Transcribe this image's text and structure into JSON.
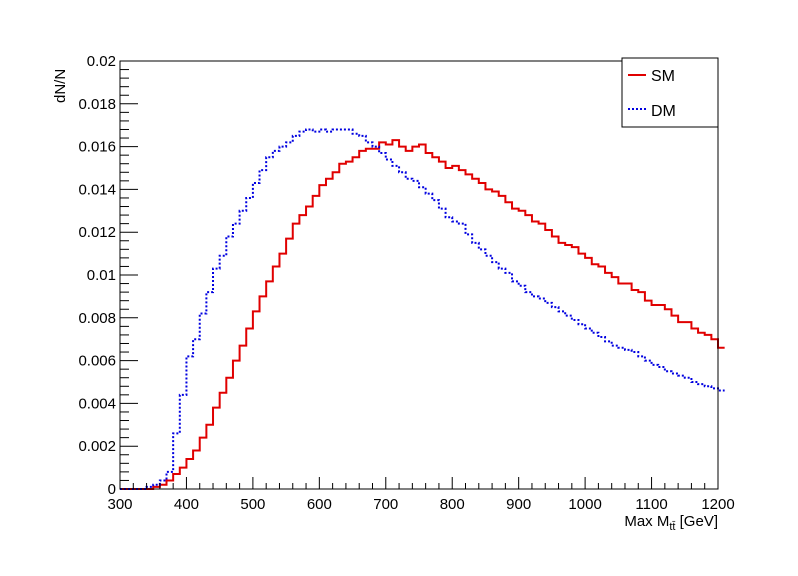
{
  "chart_data": {
    "type": "line",
    "subtype": "step-histogram",
    "title": "",
    "xlabel": "Max M_tt̄ [GeV]",
    "xlabel_parts": {
      "prefix": "Max M",
      "subscript": "tt̄",
      "suffix": " [GeV]"
    },
    "ylabel": "dN/N",
    "xlim": [
      300,
      1200
    ],
    "ylim": [
      0,
      0.02
    ],
    "x_ticks": [
      "300",
      "400",
      "500",
      "600",
      "700",
      "800",
      "900",
      "1000",
      "1100",
      "1200"
    ],
    "y_ticks": [
      "0",
      "0.002",
      "0.004",
      "0.006",
      "0.008",
      "0.01",
      "0.012",
      "0.014",
      "0.016",
      "0.018",
      "0.02"
    ],
    "bin_start": 300,
    "bin_width": 10,
    "legend": {
      "position": "top-right"
    },
    "series": [
      {
        "name": "SM",
        "color": "#e00000",
        "style": "solid",
        "values": [
          0,
          0,
          0,
          0,
          0,
          0.0001,
          0.0002,
          0.0004,
          0.0007,
          0.001,
          0.0014,
          0.0018,
          0.0024,
          0.003,
          0.0038,
          0.0045,
          0.0052,
          0.006,
          0.0067,
          0.0075,
          0.0083,
          0.009,
          0.0097,
          0.0104,
          0.011,
          0.0117,
          0.0124,
          0.0128,
          0.0132,
          0.0137,
          0.0142,
          0.0145,
          0.0148,
          0.0152,
          0.0153,
          0.0155,
          0.0158,
          0.0159,
          0.0159,
          0.0162,
          0.0161,
          0.0163,
          0.016,
          0.0158,
          0.016,
          0.0161,
          0.0157,
          0.0155,
          0.0153,
          0.015,
          0.0151,
          0.0149,
          0.0147,
          0.0145,
          0.0143,
          0.014,
          0.0139,
          0.0137,
          0.0134,
          0.0131,
          0.013,
          0.0128,
          0.0125,
          0.0124,
          0.0121,
          0.0118,
          0.0115,
          0.0114,
          0.0113,
          0.011,
          0.0108,
          0.0105,
          0.0104,
          0.0101,
          0.0099,
          0.0096,
          0.0096,
          0.0093,
          0.0092,
          0.0088,
          0.0086,
          0.0086,
          0.0084,
          0.0081,
          0.0078,
          0.0078,
          0.0075,
          0.0073,
          0.0072,
          0.007,
          0.0066
        ]
      },
      {
        "name": "DM",
        "color": "#0000e0",
        "style": "dotted",
        "values": [
          0,
          0,
          0,
          0,
          0.0001,
          0.0002,
          0.0004,
          0.0008,
          0.0026,
          0.0044,
          0.0062,
          0.007,
          0.0082,
          0.0092,
          0.0103,
          0.0109,
          0.0118,
          0.0124,
          0.013,
          0.0136,
          0.0143,
          0.0149,
          0.0155,
          0.0158,
          0.016,
          0.0162,
          0.0165,
          0.0167,
          0.0168,
          0.0167,
          0.0168,
          0.0167,
          0.0168,
          0.0168,
          0.0168,
          0.0166,
          0.0165,
          0.0162,
          0.016,
          0.0157,
          0.0154,
          0.0151,
          0.0148,
          0.0145,
          0.0144,
          0.0141,
          0.0138,
          0.0135,
          0.0131,
          0.0127,
          0.0125,
          0.0124,
          0.0119,
          0.0115,
          0.0112,
          0.0109,
          0.0106,
          0.0103,
          0.0101,
          0.0097,
          0.0095,
          0.0092,
          0.009,
          0.0089,
          0.0087,
          0.0085,
          0.0083,
          0.0081,
          0.0079,
          0.0077,
          0.0075,
          0.0073,
          0.0071,
          0.0069,
          0.0067,
          0.0066,
          0.0065,
          0.0064,
          0.0062,
          0.006,
          0.0058,
          0.0057,
          0.0055,
          0.0054,
          0.0053,
          0.0052,
          0.005,
          0.0049,
          0.0048,
          0.0047,
          0.0046
        ]
      }
    ]
  }
}
